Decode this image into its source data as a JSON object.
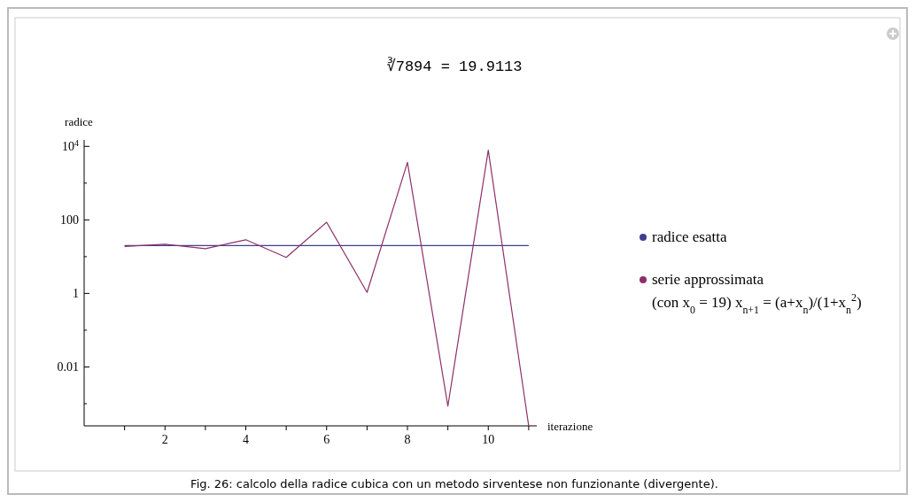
{
  "chart_data": {
    "type": "line",
    "title": "∛7894  = 19.9113",
    "xlabel": "iterazione",
    "ylabel": "radice",
    "log": "y",
    "x": [
      1,
      2,
      3,
      4,
      5,
      6,
      7,
      8,
      9,
      10,
      11
    ],
    "series": [
      {
        "name": "radice esatta",
        "color": "#3f3f8f",
        "values": [
          19.9113,
          19.9113,
          19.9113,
          19.9113,
          19.9113,
          19.9113,
          19.9113,
          19.9113,
          19.9113,
          19.9113,
          19.9113
        ]
      },
      {
        "name": "serie approssimata\n(con x$_{0}$ = 19)  x$_{n+1}$ = (a+x$_{n}$)/(1+x$_{n}$$^{2}$)",
        "color": "#8f2f6a",
        "values": [
          19,
          21.86,
          16.53,
          28.84,
          9.52,
          86.3,
          1.07,
          3677,
          0.00086,
          7894,
          0.00025
        ]
      }
    ],
    "xlim": [
      0,
      11.2
    ],
    "xticks": [
      {
        "value": 1,
        "label": null
      },
      2,
      {
        "value": 3,
        "label": null
      },
      4,
      {
        "value": 5,
        "label": null
      },
      6,
      {
        "value": 7,
        "label": null
      },
      8,
      {
        "value": 9,
        "label": null
      },
      10,
      {
        "value": 11,
        "label": null
      }
    ],
    "ylim": [
      0.00025,
      15000
    ],
    "yticks": [
      {
        "value": 0.001,
        "label": null
      },
      0.01,
      {
        "value": 0.1,
        "label": null
      },
      1,
      {
        "value": 10,
        "label": null
      },
      100,
      {
        "value": 1000,
        "label": null
      },
      {
        "value": 10000,
        "label": "10$^{4}$"
      }
    ],
    "grid": false,
    "legend": "right",
    "marker": "none",
    "line_style": "solid",
    "annotations": [
      "Fig. 26: calcolo della radice cubica con un metodo sirventese non funzionante (divergente)."
    ]
  }
}
